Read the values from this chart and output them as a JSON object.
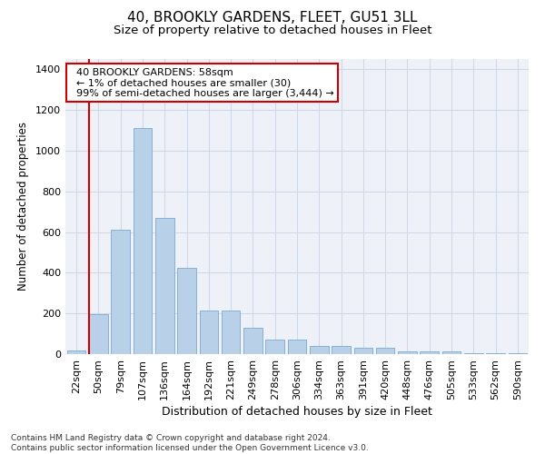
{
  "title": "40, BROOKLY GARDENS, FLEET, GU51 3LL",
  "subtitle": "Size of property relative to detached houses in Fleet",
  "xlabel": "Distribution of detached houses by size in Fleet",
  "ylabel": "Number of detached properties",
  "categories": [
    "22sqm",
    "50sqm",
    "79sqm",
    "107sqm",
    "136sqm",
    "164sqm",
    "192sqm",
    "221sqm",
    "249sqm",
    "278sqm",
    "306sqm",
    "334sqm",
    "363sqm",
    "391sqm",
    "420sqm",
    "448sqm",
    "476sqm",
    "505sqm",
    "533sqm",
    "562sqm",
    "590sqm"
  ],
  "values": [
    20,
    195,
    610,
    1110,
    670,
    425,
    215,
    215,
    130,
    72,
    72,
    38,
    38,
    30,
    30,
    15,
    15,
    15,
    3,
    3,
    3
  ],
  "bar_color": "#b8d0e8",
  "bar_edge_color": "#7aaad0",
  "grid_color": "#d0d8e8",
  "background_color": "#eef2f8",
  "annotation_text": "  40 BROOKLY GARDENS: 58sqm\n  ← 1% of detached houses are smaller (30)\n  99% of semi-detached houses are larger (3,444) →",
  "vline_color": "#cc0000",
  "box_color": "#cc0000",
  "ylim": [
    0,
    1450
  ],
  "yticks": [
    0,
    200,
    400,
    600,
    800,
    1000,
    1200,
    1400
  ],
  "footer": "Contains HM Land Registry data © Crown copyright and database right 2024.\nContains public sector information licensed under the Open Government Licence v3.0.",
  "title_fontsize": 11,
  "subtitle_fontsize": 9.5,
  "xlabel_fontsize": 9,
  "ylabel_fontsize": 8.5,
  "tick_fontsize": 8,
  "footer_fontsize": 6.5,
  "annotation_fontsize": 8
}
